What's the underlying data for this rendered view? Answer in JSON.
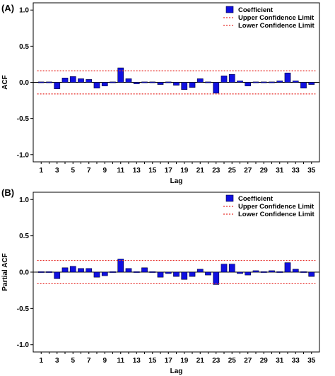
{
  "chart_data": [
    {
      "panel_label": "(A)",
      "type": "bar",
      "xlabel": "Lag",
      "ylabel": "ACF",
      "ylim": [
        -1.1,
        1.1
      ],
      "yticks": [
        "1.0",
        "0.5",
        "0.0",
        "-0.5",
        "-1.0"
      ],
      "ytick_values": [
        1.0,
        0.5,
        0.0,
        -0.5,
        -1.0
      ],
      "x": [
        1,
        2,
        3,
        4,
        5,
        6,
        7,
        8,
        9,
        10,
        11,
        12,
        13,
        14,
        15,
        16,
        17,
        18,
        19,
        20,
        21,
        22,
        23,
        24,
        25,
        26,
        27,
        28,
        29,
        30,
        31,
        32,
        33,
        34,
        35
      ],
      "xtick_labels": [
        "1",
        "3",
        "5",
        "7",
        "9",
        "11",
        "13",
        "15",
        "17",
        "19",
        "21",
        "23",
        "25",
        "27",
        "29",
        "31",
        "33",
        "35"
      ],
      "series": [
        {
          "name": "Coefficient",
          "values": [
            -0.01,
            -0.01,
            -0.09,
            0.06,
            0.08,
            0.05,
            0.04,
            -0.08,
            -0.05,
            0.01,
            0.2,
            0.05,
            -0.02,
            0.0,
            0.0,
            -0.03,
            0.0,
            -0.04,
            -0.1,
            -0.07,
            0.05,
            0.01,
            -0.15,
            0.09,
            0.11,
            0.02,
            -0.05,
            -0.01,
            0.0,
            0.01,
            0.02,
            0.13,
            0.02,
            -0.08,
            -0.03
          ]
        }
      ],
      "upper_confidence_limit": 0.16,
      "lower_confidence_limit": -0.16,
      "legend": {
        "placement": "top-right",
        "items": [
          "Coefficient",
          "Upper Confidence Limit",
          "Lower Confidence Limit"
        ]
      },
      "grid": false
    },
    {
      "panel_label": "(B)",
      "type": "bar",
      "xlabel": "Lag",
      "ylabel": "Partial ACF",
      "ylim": [
        -1.1,
        1.1
      ],
      "yticks": [
        "1.0",
        "0.5",
        "0.0",
        "-0.5",
        "-1.0"
      ],
      "ytick_values": [
        1.0,
        0.5,
        0.0,
        -0.5,
        -1.0
      ],
      "x": [
        1,
        2,
        3,
        4,
        5,
        6,
        7,
        8,
        9,
        10,
        11,
        12,
        13,
        14,
        15,
        16,
        17,
        18,
        19,
        20,
        21,
        22,
        23,
        24,
        25,
        26,
        27,
        28,
        29,
        30,
        31,
        32,
        33,
        34,
        35
      ],
      "xtick_labels": [
        "1",
        "3",
        "5",
        "7",
        "9",
        "11",
        "13",
        "15",
        "17",
        "19",
        "21",
        "23",
        "25",
        "27",
        "29",
        "31",
        "33",
        "35"
      ],
      "series": [
        {
          "name": "Coefficient",
          "values": [
            -0.01,
            -0.01,
            -0.09,
            0.06,
            0.08,
            0.05,
            0.05,
            -0.07,
            -0.05,
            0.0,
            0.18,
            0.05,
            0.0,
            0.06,
            0.0,
            -0.07,
            -0.02,
            -0.06,
            -0.1,
            -0.06,
            0.04,
            -0.04,
            -0.17,
            0.11,
            0.11,
            -0.02,
            -0.04,
            0.02,
            0.0,
            0.02,
            0.01,
            0.13,
            0.04,
            0.0,
            -0.06
          ]
        }
      ],
      "upper_confidence_limit": 0.16,
      "lower_confidence_limit": -0.16,
      "legend": {
        "placement": "top-right",
        "items": [
          "Coefficient",
          "Upper Confidence Limit",
          "Lower Confidence Limit"
        ]
      },
      "grid": false
    }
  ],
  "colors": {
    "bar_fill": "#1010e0",
    "bar_stroke": "#000033",
    "confidence_line": "#e8302c",
    "axis": "#000000",
    "plot_background": "#ffffff"
  }
}
